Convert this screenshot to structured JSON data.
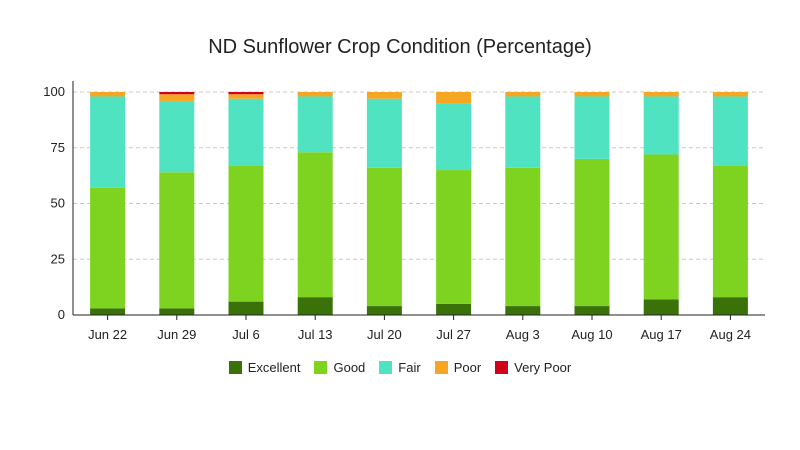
{
  "chart_data": {
    "type": "bar",
    "stacked": true,
    "title": "ND Sunflower Crop Condition (Percentage)",
    "xlabel": "",
    "ylabel": "",
    "ylim": [
      0,
      100
    ],
    "yticks": [
      0,
      25,
      50,
      75,
      100
    ],
    "grid": true,
    "legend_position": "bottom",
    "categories": [
      "Jun 22",
      "Jun 29",
      "Jul 6",
      "Jul 13",
      "Jul 20",
      "Jul 27",
      "Aug 3",
      "Aug 10",
      "Aug 17",
      "Aug 24"
    ],
    "series": [
      {
        "name": "Excellent",
        "color": "#3a7209",
        "values": [
          3,
          3,
          6,
          8,
          4,
          5,
          4,
          4,
          7,
          8
        ]
      },
      {
        "name": "Good",
        "color": "#7ed321",
        "values": [
          54,
          61,
          61,
          65,
          62,
          60,
          62,
          66,
          65,
          59
        ]
      },
      {
        "name": "Fair",
        "color": "#50e3c2",
        "values": [
          41,
          32,
          30,
          25,
          31,
          30,
          32,
          28,
          26,
          31
        ]
      },
      {
        "name": "Poor",
        "color": "#f5a623",
        "values": [
          2,
          3,
          2,
          2,
          3,
          5,
          2,
          2,
          2,
          2
        ]
      },
      {
        "name": "Very Poor",
        "color": "#d0021b",
        "values": [
          0,
          1,
          1,
          0,
          0,
          0,
          0,
          0,
          0,
          0
        ]
      }
    ]
  }
}
